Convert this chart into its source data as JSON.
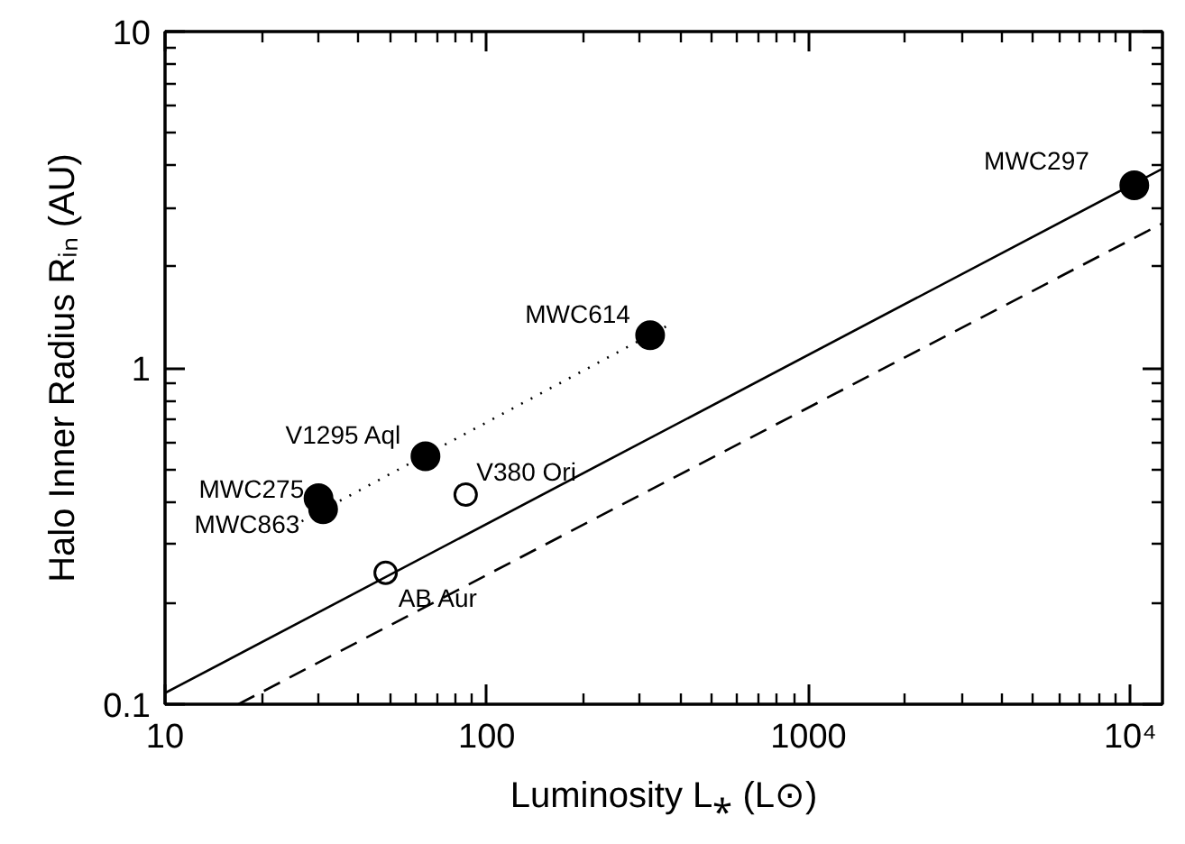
{
  "chart_data": {
    "type": "scatter",
    "xlabel": "Luminosity L⁎ (L⊙)",
    "ylabel": "Halo Inner Radius Rᵢₙ (AU)",
    "log": "xy",
    "grid": false,
    "xlim": [
      10,
      12600
    ],
    "ylim": [
      0.1,
      10
    ],
    "xticks": [
      10,
      100,
      1000,
      {
        "value": 10000,
        "label": "10⁴"
      }
    ],
    "yticks": [
      0.1,
      1,
      10
    ],
    "series": [
      {
        "marker": "circle",
        "color": "#000000",
        "x": [
          30,
          31,
          64.5,
          322,
          10300
        ],
        "values": [
          0.41,
          0.38,
          0.546,
          1.25,
          3.49
        ]
      },
      {
        "marker": "circle",
        "color": "#ffffff",
        "x": [
          48.5,
          86
        ],
        "values": [
          0.246,
          0.42
        ]
      },
      {
        "type": "line",
        "line_style": "solid",
        "color": "#000000",
        "x": [
          10,
          12600
        ],
        "values": [
          0.108,
          3.91
        ]
      },
      {
        "type": "line",
        "line_style": "dashed",
        "color": "#000000",
        "x": [
          16.9,
          12600
        ],
        "values": [
          0.1,
          2.69
        ]
      },
      {
        "type": "line",
        "line_style": "dotted",
        "color": "#000000",
        "x": [
          26.6,
          367
        ],
        "values": [
          0.35,
          1.34
        ]
      }
    ],
    "annotations": [
      {
        "text": "MWC297",
        "x": 10300,
        "y": 3.49
      },
      {
        "text": "MWC614",
        "x": 322,
        "y": 1.25
      },
      {
        "text": "V1295 Aql",
        "x": 64.5,
        "y": 0.546
      },
      {
        "text": "MWC275",
        "x": 30,
        "y": 0.41
      },
      {
        "text": "MWC863",
        "x": 31,
        "y": 0.38
      },
      {
        "text": "V380 Ori",
        "x": 86,
        "y": 0.42
      },
      {
        "text": "AB Aur",
        "x": 48.5,
        "y": 0.246
      }
    ]
  }
}
